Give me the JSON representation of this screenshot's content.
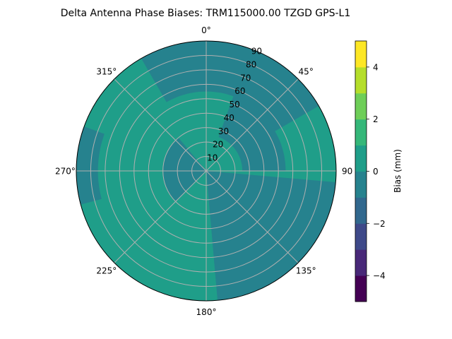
{
  "chart_data": {
    "type": "heatmap",
    "projection": "polar",
    "title": "Delta Antenna Phase Biases: TRM115000.00    TZGD GPS-L1",
    "azimuth_ticks": [
      {
        "angle": 0,
        "label": "0°"
      },
      {
        "angle": 45,
        "label": "45°"
      },
      {
        "angle": 90,
        "label": "90"
      },
      {
        "angle": 135,
        "label": "135°"
      },
      {
        "angle": 180,
        "label": "180°"
      },
      {
        "angle": 225,
        "label": "225°"
      },
      {
        "angle": 270,
        "label": "270°"
      },
      {
        "angle": 315,
        "label": "315°"
      }
    ],
    "radial_ticks": [
      10,
      20,
      30,
      40,
      50,
      60,
      70,
      80,
      90
    ],
    "radial_range": [
      0,
      90
    ],
    "radial_tick_labels_angle": 22.5,
    "grid": true,
    "colorbar": {
      "label": "Bias (mm)",
      "range": [
        -5,
        5
      ],
      "levels": [
        -5,
        -4,
        -3,
        -2,
        -1,
        0,
        1,
        2,
        3,
        4,
        5
      ],
      "ticks": [
        4,
        2,
        0,
        -2,
        -4
      ],
      "tick_labels": [
        "4",
        "2",
        "0",
        "−2",
        "−4"
      ],
      "colors": [
        "#440154",
        "#482878",
        "#3e4989",
        "#31688e",
        "#26828e",
        "#1f9e89",
        "#35b779",
        "#6ece58",
        "#b5de2b",
        "#fde725"
      ]
    },
    "regions": [
      {
        "bin": "0 to 1",
        "azimuth_range": [
          0,
          360
        ],
        "zenith_range": [
          0,
          90
        ],
        "note": "background"
      },
      {
        "bin": "-1 to 0",
        "azimuth_range": [
          330,
          60
        ],
        "zenith_range": [
          55,
          90
        ]
      },
      {
        "bin": "-1 to 0",
        "azimuth_range": [
          20,
          90
        ],
        "zenith_range": [
          25,
          55
        ]
      },
      {
        "bin": "-1 to 0",
        "azimuth_range": [
          95,
          175
        ],
        "zenith_range": [
          0,
          90
        ]
      },
      {
        "bin": "-1 to 0",
        "azimuth_range": [
          225,
          320
        ],
        "zenith_range": [
          0,
          30
        ]
      },
      {
        "bin": "-1 to 0",
        "azimuth_range": [
          255,
          290
        ],
        "zenith_range": [
          75,
          90
        ]
      }
    ]
  }
}
